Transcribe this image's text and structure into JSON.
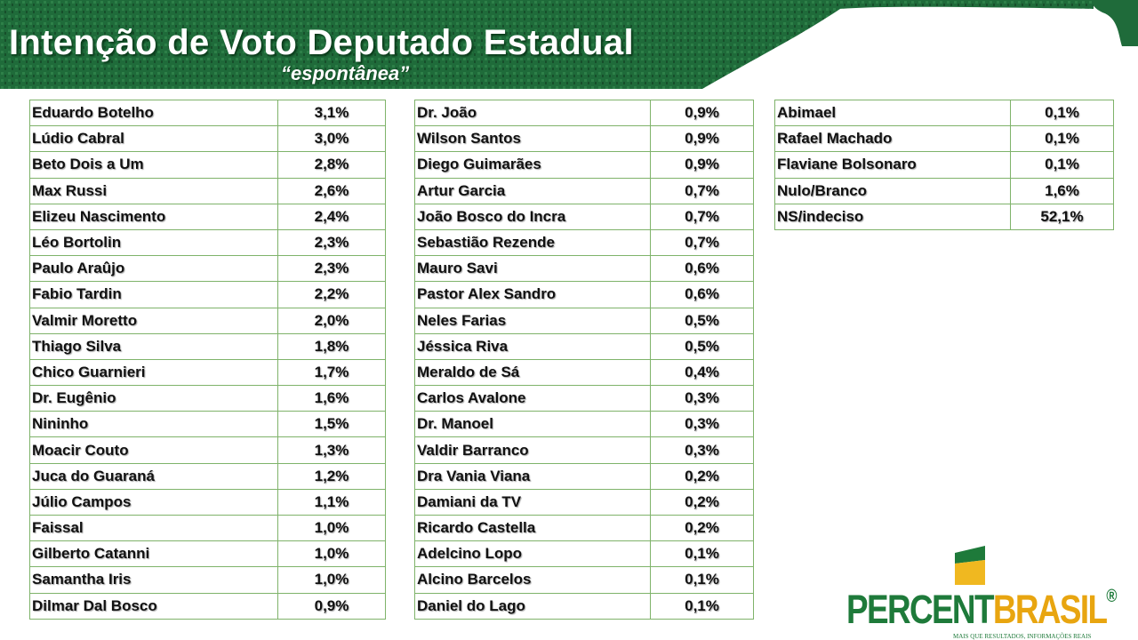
{
  "header": {
    "title": "Intenção de Voto Deputado Estadual",
    "subtitle": "“espontânea”"
  },
  "tables": [
    {
      "rows": [
        [
          "Eduardo Botelho",
          "3,1%"
        ],
        [
          "Lúdio Cabral",
          "3,0%"
        ],
        [
          "Beto Dois a Um",
          "2,8%"
        ],
        [
          "Max Russi",
          "2,6%"
        ],
        [
          "Elizeu Nascimento",
          "2,4%"
        ],
        [
          "Léo Bortolin",
          "2,3%"
        ],
        [
          "Paulo Araûjo",
          "2,3%"
        ],
        [
          "Fabio Tardin",
          "2,2%"
        ],
        [
          "Valmir Moretto",
          "2,0%"
        ],
        [
          "Thiago Silva",
          "1,8%"
        ],
        [
          "Chico Guarnieri",
          "1,7%"
        ],
        [
          "Dr. Eugênio",
          "1,6%"
        ],
        [
          "Nininho",
          "1,5%"
        ],
        [
          "Moacir Couto",
          "1,3%"
        ],
        [
          "Juca do Guaraná",
          "1,2%"
        ],
        [
          "Júlio Campos",
          "1,1%"
        ],
        [
          "Faissal",
          "1,0%"
        ],
        [
          "Gilberto Catanni",
          "1,0%"
        ],
        [
          "Samantha Iris",
          "1,0%"
        ],
        [
          "Dilmar Dal Bosco",
          "0,9%"
        ]
      ]
    },
    {
      "rows": [
        [
          "Dr. João",
          "0,9%"
        ],
        [
          "Wilson Santos",
          "0,9%"
        ],
        [
          "Diego Guimarães",
          "0,9%"
        ],
        [
          "Artur Garcia",
          "0,7%"
        ],
        [
          "João Bosco do Incra",
          "0,7%"
        ],
        [
          "Sebastião Rezende",
          "0,7%"
        ],
        [
          "Mauro Savi",
          "0,6%"
        ],
        [
          "Pastor Alex Sandro",
          "0,6%"
        ],
        [
          "Neles Farias",
          "0,5%"
        ],
        [
          "Jéssica Riva",
          "0,5%"
        ],
        [
          "Meraldo de Sá",
          "0,4%"
        ],
        [
          "Carlos Avalone",
          "0,3%"
        ],
        [
          "Dr. Manoel",
          "0,3%"
        ],
        [
          "Valdir Barranco",
          "0,3%"
        ],
        [
          "Dra Vania Viana",
          "0,2%"
        ],
        [
          "Damiani da TV",
          "0,2%"
        ],
        [
          "Ricardo Castella",
          "0,2%"
        ],
        [
          "Adelcino Lopo",
          "0,1%"
        ],
        [
          "Alcino Barcelos",
          "0,1%"
        ],
        [
          "Daniel do Lago",
          "0,1%"
        ]
      ]
    },
    {
      "rows": [
        [
          "Abimael",
          "0,1%"
        ],
        [
          "Rafael Machado",
          "0,1%"
        ],
        [
          "Flaviane Bolsonaro",
          "0,1%"
        ],
        [
          "Nulo/Branco",
          "1,6%"
        ],
        [
          "NS/indeciso",
          "52,1%"
        ]
      ]
    }
  ],
  "logo": {
    "part1": "PERCENT",
    "part2": "BRASIL",
    "mark": "®",
    "tagline": "MAIS QUE RESULTADOS, INFORMAÇÕES REAIS"
  }
}
